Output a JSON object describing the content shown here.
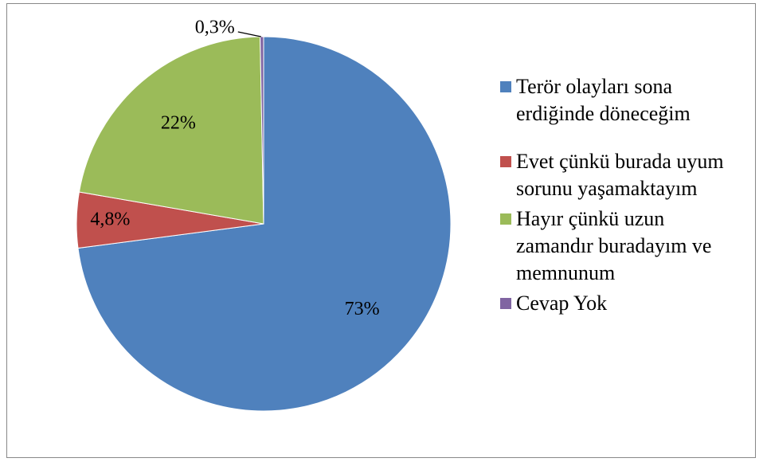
{
  "chart_data": {
    "type": "pie",
    "categories": [
      "Terör olayları sona erdiğinde döneceğim",
      "Evet çünkü burada uyum sorunu yaşamaktayım",
      "Hayır çünkü uzun zamandır buradayım ve memnunum",
      "Cevap Yok"
    ],
    "values": [
      73,
      4.8,
      22,
      0.3
    ],
    "value_labels": [
      "73%",
      "4,8%",
      "22%",
      "0,3%"
    ],
    "colors": [
      "#4f81bd",
      "#c0504d",
      "#9bbb59",
      "#8064a2"
    ],
    "legend": "right"
  }
}
